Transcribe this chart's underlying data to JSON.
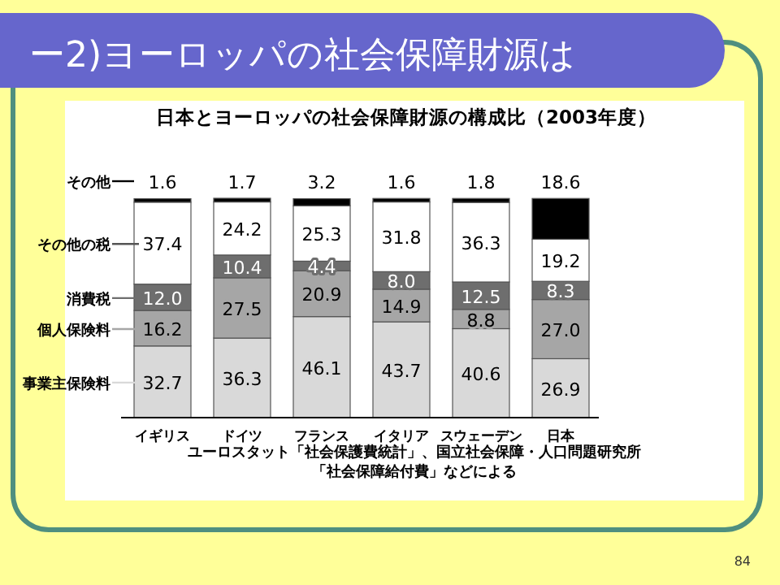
{
  "chart_data": {
    "type": "bar",
    "stacked": true,
    "legend": "left",
    "title": "ー2)ヨーロッパの社会保障財源は",
    "subtitle": "日本とヨーロッパの社会保障財源の構成比（2003年度）",
    "categories": [
      "イギリス",
      "ドイツ",
      "フランス",
      "イタリア",
      "スウェーデン",
      "日本"
    ],
    "series": [
      {
        "name": "事業主保険料",
        "color": "#d9d9d9",
        "values": [
          32.7,
          36.3,
          46.1,
          43.7,
          40.6,
          26.9
        ],
        "value_labels": [
          "32.7",
          "36.3",
          "46.1",
          "43.7",
          "40.6",
          "26.9"
        ]
      },
      {
        "name": "個人保険料",
        "color": "#a6a6a6",
        "values": [
          16.2,
          27.5,
          20.9,
          14.9,
          8.8,
          27.0
        ],
        "value_labels": [
          "16.2",
          "27.5",
          "20.9",
          "14.9",
          "8.8",
          "27.0"
        ]
      },
      {
        "name": "消費税",
        "color": "#6e6e6e",
        "values": [
          12.0,
          10.4,
          4.4,
          8.0,
          12.5,
          8.3
        ],
        "value_labels": [
          "12.0",
          "10.4",
          "4.4",
          "8.0",
          "12.5",
          "8.3"
        ]
      },
      {
        "name": "その他の税",
        "color": "#ffffff",
        "values": [
          37.4,
          24.2,
          25.3,
          31.8,
          36.3,
          19.2
        ],
        "value_labels": [
          "37.4",
          "24.2",
          "25.3",
          "31.8",
          "36.3",
          "19.2"
        ]
      },
      {
        "name": "その他",
        "color": "#000000",
        "values": [
          1.6,
          1.7,
          3.2,
          1.6,
          1.8,
          18.6
        ],
        "value_labels": [
          "1.6",
          "1.7",
          "3.2",
          "1.6",
          "1.8",
          "18.6"
        ]
      }
    ],
    "annotations": [
      "ユーロスタット「社会保護費統計」、国立社会保障・人口問題研究所「社会保障給付費」などによる",
      "84"
    ]
  }
}
